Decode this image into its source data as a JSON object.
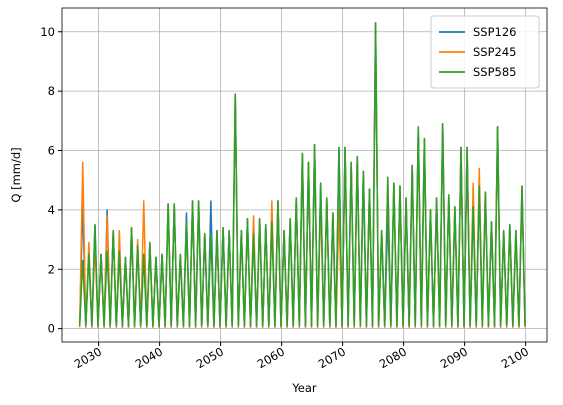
{
  "chart_data": {
    "type": "line",
    "x_label": "Year",
    "y_label": "Q [mm/d]",
    "xlim": [
      2024,
      2103.5
    ],
    "ylim": [
      -0.45,
      10.8
    ],
    "xticks": [
      2030,
      2040,
      2050,
      2060,
      2070,
      2080,
      2090,
      2100
    ],
    "yticks": [
      0,
      2,
      4,
      6,
      8,
      10
    ],
    "grid": true,
    "legend": "upper right",
    "x": [
      2026.9,
      2027.4,
      2027.9,
      2028.4,
      2028.9,
      2029.4,
      2029.9,
      2030.4,
      2030.9,
      2031.4,
      2031.9,
      2032.4,
      2032.9,
      2033.4,
      2033.9,
      2034.4,
      2034.9,
      2035.4,
      2035.9,
      2036.4,
      2036.9,
      2037.4,
      2037.9,
      2038.4,
      2038.9,
      2039.4,
      2039.9,
      2040.4,
      2040.9,
      2041.4,
      2041.9,
      2042.4,
      2042.9,
      2043.4,
      2043.9,
      2044.4,
      2044.9,
      2045.4,
      2045.9,
      2046.4,
      2046.9,
      2047.4,
      2047.9,
      2048.4,
      2048.9,
      2049.4,
      2049.9,
      2050.4,
      2050.9,
      2051.4,
      2051.9,
      2052.4,
      2052.9,
      2053.4,
      2053.9,
      2054.4,
      2054.9,
      2055.4,
      2055.9,
      2056.4,
      2056.9,
      2057.4,
      2057.9,
      2058.4,
      2058.9,
      2059.4,
      2059.9,
      2060.4,
      2060.9,
      2061.4,
      2061.9,
      2062.4,
      2062.9,
      2063.4,
      2063.9,
      2064.4,
      2064.9,
      2065.4,
      2065.9,
      2066.4,
      2066.9,
      2067.4,
      2067.9,
      2068.4,
      2068.9,
      2069.4,
      2069.9,
      2070.4,
      2070.9,
      2071.4,
      2071.9,
      2072.4,
      2072.9,
      2073.4,
      2073.9,
      2074.4,
      2074.9,
      2075.4,
      2075.9,
      2076.4,
      2076.9,
      2077.4,
      2077.9,
      2078.4,
      2078.9,
      2079.4,
      2079.9,
      2080.4,
      2080.9,
      2081.4,
      2081.9,
      2082.4,
      2082.9,
      2083.4,
      2083.9,
      2084.4,
      2084.9,
      2085.4,
      2085.9,
      2086.4,
      2086.9,
      2087.4,
      2087.9,
      2088.4,
      2088.9,
      2089.4,
      2089.9,
      2090.4,
      2090.9,
      2091.4,
      2091.9,
      2092.4,
      2092.9,
      2093.4,
      2093.9,
      2094.4,
      2094.9,
      2095.4,
      2095.9,
      2096.4,
      2096.9,
      2097.4,
      2097.9,
      2098.4,
      2098.9,
      2099.4,
      2099.9
    ],
    "series": [
      {
        "name": "SSP126",
        "color": "#1f77b4",
        "values": [
          0.05,
          4.3,
          0.05,
          2.5,
          0.05,
          3.5,
          0.05,
          2.5,
          0.05,
          4.0,
          0.05,
          3.3,
          0.05,
          2.6,
          0.05,
          2.4,
          0.05,
          3.4,
          0.05,
          2.8,
          0.05,
          2.5,
          0.05,
          2.8,
          0.05,
          2.4,
          0.05,
          2.5,
          0.05,
          4.2,
          0.05,
          4.2,
          0.05,
          2.5,
          0.05,
          3.9,
          0.05,
          4.3,
          0.05,
          4.3,
          0.05,
          3.2,
          0.05,
          4.3,
          0.05,
          3.3,
          0.05,
          3.4,
          0.05,
          3.3,
          0.05,
          7.9,
          0.05,
          3.3,
          0.05,
          3.7,
          0.05,
          3.2,
          0.05,
          3.7,
          0.05,
          3.5,
          0.05,
          3.6,
          0.05,
          4.3,
          0.05,
          3.3,
          0.05,
          3.7,
          0.05,
          4.4,
          0.05,
          5.9,
          0.05,
          5.6,
          0.05,
          6.2,
          0.05,
          4.9,
          0.05,
          4.4,
          0.05,
          3.9,
          0.05,
          6.1,
          0.05,
          6.1,
          0.05,
          5.6,
          0.05,
          5.8,
          0.05,
          5.3,
          0.05,
          4.7,
          0.05,
          10.3,
          0.05,
          3.3,
          0.05,
          3.85,
          0.05,
          4.9,
          0.05,
          4.8,
          0.05,
          4.4,
          0.05,
          5.5,
          0.05,
          6.8,
          0.05,
          6.4,
          0.05,
          4.0,
          0.05,
          4.4,
          0.05,
          6.9,
          0.05,
          4.5,
          0.05,
          4.1,
          0.05,
          6.1,
          0.05,
          6.1,
          0.05,
          4.1,
          0.05,
          4.8,
          0.05,
          4.6,
          0.05,
          3.6,
          0.05,
          6.8,
          0.05,
          3.3,
          0.05,
          3.5,
          0.05,
          3.3,
          0.05,
          4.8,
          0.05
        ]
      },
      {
        "name": "SSP245",
        "color": "#ff7f0e",
        "values": [
          0.05,
          5.6,
          0.05,
          2.9,
          0.05,
          2.9,
          0.05,
          2.5,
          0.05,
          3.8,
          0.05,
          3.3,
          0.05,
          3.3,
          0.05,
          2.4,
          0.05,
          3.4,
          0.05,
          3.0,
          0.05,
          4.3,
          0.05,
          2.9,
          0.05,
          2.4,
          0.05,
          2.5,
          0.05,
          4.2,
          0.05,
          4.2,
          0.05,
          2.5,
          0.05,
          3.5,
          0.05,
          4.3,
          0.05,
          4.3,
          0.05,
          3.2,
          0.05,
          3.2,
          0.05,
          3.3,
          0.05,
          3.4,
          0.05,
          3.3,
          0.05,
          7.9,
          0.05,
          3.3,
          0.05,
          3.7,
          0.05,
          3.8,
          0.05,
          3.7,
          0.05,
          3.5,
          0.05,
          4.3,
          0.05,
          4.3,
          0.05,
          3.3,
          0.05,
          3.7,
          0.05,
          4.4,
          0.05,
          5.9,
          0.05,
          5.6,
          0.05,
          6.2,
          0.05,
          4.3,
          0.05,
          4.4,
          0.05,
          3.9,
          0.05,
          4.0,
          0.05,
          6.1,
          0.05,
          5.6,
          0.05,
          5.8,
          0.05,
          5.3,
          0.05,
          4.7,
          0.05,
          10.3,
          0.05,
          3.3,
          0.05,
          5.1,
          0.05,
          4.9,
          0.05,
          4.8,
          0.05,
          4.4,
          0.05,
          5.5,
          0.05,
          6.6,
          0.05,
          6.4,
          0.05,
          4.0,
          0.05,
          4.4,
          0.05,
          6.9,
          0.05,
          4.5,
          0.05,
          4.1,
          0.05,
          6.1,
          0.05,
          6.1,
          0.05,
          4.9,
          0.05,
          5.4,
          0.05,
          4.6,
          0.05,
          3.6,
          0.05,
          6.8,
          0.05,
          3.3,
          0.05,
          3.5,
          0.05,
          3.3,
          0.05,
          4.8,
          0.05
        ]
      },
      {
        "name": "SSP585",
        "color": "#2ca02c",
        "values": [
          0.1,
          2.3,
          0.1,
          2.5,
          0.1,
          3.5,
          0.1,
          2.5,
          0.1,
          2.6,
          0.1,
          3.3,
          0.1,
          2.6,
          0.1,
          2.4,
          0.1,
          3.4,
          0.1,
          2.8,
          0.1,
          2.5,
          0.1,
          2.9,
          0.1,
          2.4,
          0.1,
          2.5,
          0.1,
          4.2,
          0.1,
          4.2,
          0.1,
          2.5,
          0.1,
          3.6,
          0.1,
          4.3,
          0.1,
          4.3,
          0.1,
          3.2,
          0.1,
          3.2,
          0.1,
          3.3,
          0.1,
          3.4,
          0.1,
          3.3,
          0.1,
          7.9,
          0.1,
          3.3,
          0.1,
          3.7,
          0.1,
          3.2,
          0.1,
          3.7,
          0.1,
          3.5,
          0.1,
          3.6,
          0.1,
          4.3,
          0.1,
          3.3,
          0.1,
          3.7,
          0.1,
          4.4,
          0.1,
          5.9,
          0.1,
          5.6,
          0.1,
          6.2,
          0.1,
          4.9,
          0.1,
          4.4,
          0.1,
          3.9,
          0.1,
          6.1,
          0.1,
          6.1,
          0.1,
          5.6,
          0.1,
          5.8,
          0.1,
          5.3,
          0.1,
          4.7,
          0.1,
          10.3,
          0.1,
          3.3,
          0.1,
          5.1,
          0.1,
          4.9,
          0.1,
          4.8,
          0.1,
          4.4,
          0.1,
          5.5,
          0.1,
          6.8,
          0.1,
          6.4,
          0.1,
          4.0,
          0.1,
          4.4,
          0.1,
          6.9,
          0.1,
          4.5,
          0.1,
          4.1,
          0.1,
          6.1,
          0.1,
          6.1,
          0.1,
          4.1,
          0.1,
          4.8,
          0.1,
          4.6,
          0.1,
          3.6,
          0.1,
          6.8,
          0.1,
          3.3,
          0.1,
          3.5,
          0.1,
          3.3,
          0.1,
          4.8,
          0.1
        ]
      }
    ]
  }
}
